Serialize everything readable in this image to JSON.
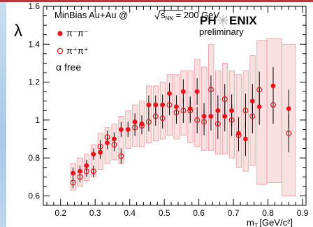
{
  "chart_data": {
    "type": "scatter",
    "ylabel": "λ",
    "xlabel_main": "m",
    "xlabel_sub": "T",
    "xlabel_unit": "[GeV/c²]",
    "xlim": [
      0.15,
      0.91
    ],
    "ylim": [
      0.55,
      1.6
    ],
    "xticks": [
      {
        "v": 0.2,
        "label": "0.2"
      },
      {
        "v": 0.3,
        "label": "0.3"
      },
      {
        "v": 0.4,
        "label": "0.4"
      },
      {
        "v": 0.5,
        "label": "0.5"
      },
      {
        "v": 0.6,
        "label": "0.6"
      },
      {
        "v": 0.7,
        "label": "0.7"
      },
      {
        "v": 0.8,
        "label": "0.8"
      },
      {
        "v": 0.9,
        "label": "0.9"
      }
    ],
    "yticks": [
      {
        "v": 0.6,
        "label": "0.6"
      },
      {
        "v": 0.8,
        "label": "0.8"
      },
      {
        "v": 1.0,
        "label": "1"
      },
      {
        "v": 1.2,
        "label": "1.2"
      },
      {
        "v": 1.4,
        "label": "1.4"
      },
      {
        "v": 1.6,
        "label": "1.6"
      }
    ],
    "annotation": {
      "system_pre": "MinBias Au+Au @ ",
      "sqrt_s": "s",
      "sqrt_sub": "NN",
      "system_post": " = 200 GeV",
      "alpha": "α free"
    },
    "logo": {
      "text_left": "PH",
      "text_right": "ENIX",
      "subtitle": "preliminary"
    },
    "colors": {
      "minus": "#e8141b",
      "plus": "#e8141b",
      "band_fill": "#f6c9c9",
      "band_stroke": "#ef9a9a"
    },
    "series": [
      {
        "name": "π⁻π⁻",
        "marker": "filled",
        "points": [
          {
            "x": 0.236,
            "y": 0.72,
            "err": 0.03
          },
          {
            "x": 0.256,
            "y": 0.73,
            "err": 0.03
          },
          {
            "x": 0.275,
            "y": 0.76,
            "err": 0.03
          },
          {
            "x": 0.295,
            "y": 0.82,
            "err": 0.03
          },
          {
            "x": 0.315,
            "y": 0.83,
            "err": 0.035
          },
          {
            "x": 0.335,
            "y": 0.88,
            "err": 0.035
          },
          {
            "x": 0.355,
            "y": 0.9,
            "err": 0.035
          },
          {
            "x": 0.375,
            "y": 0.95,
            "err": 0.04
          },
          {
            "x": 0.395,
            "y": 0.95,
            "err": 0.04
          },
          {
            "x": 0.415,
            "y": 0.99,
            "err": 0.045
          },
          {
            "x": 0.435,
            "y": 0.98,
            "err": 0.045
          },
          {
            "x": 0.455,
            "y": 1.08,
            "err": 0.05
          },
          {
            "x": 0.475,
            "y": 1.08,
            "err": 0.05
          },
          {
            "x": 0.495,
            "y": 1.08,
            "err": 0.055
          },
          {
            "x": 0.515,
            "y": 1.14,
            "err": 0.055
          },
          {
            "x": 0.535,
            "y": 1.07,
            "err": 0.06
          },
          {
            "x": 0.555,
            "y": 1.15,
            "err": 0.065
          },
          {
            "x": 0.575,
            "y": 1.06,
            "err": 0.065
          },
          {
            "x": 0.595,
            "y": 1.15,
            "err": 0.07
          },
          {
            "x": 0.615,
            "y": 1.02,
            "err": 0.07
          },
          {
            "x": 0.635,
            "y": 1.02,
            "err": 0.075
          },
          {
            "x": 0.655,
            "y": 1.05,
            "err": 0.08
          },
          {
            "x": 0.675,
            "y": 1.02,
            "err": 0.08
          },
          {
            "x": 0.695,
            "y": 1.05,
            "err": 0.085
          },
          {
            "x": 0.715,
            "y": 0.93,
            "err": 0.085
          },
          {
            "x": 0.735,
            "y": 0.9,
            "err": 0.09
          },
          {
            "x": 0.755,
            "y": 1.1,
            "err": 0.09
          },
          {
            "x": 0.775,
            "y": 1.07,
            "err": 0.095
          },
          {
            "x": 0.815,
            "y": 1.18,
            "err": 0.1
          },
          {
            "x": 0.86,
            "y": 1.06,
            "err": 0.1
          }
        ]
      },
      {
        "name": "π⁺π⁺",
        "marker": "open",
        "points": [
          {
            "x": 0.236,
            "y": 0.67,
            "err": 0.03
          },
          {
            "x": 0.256,
            "y": 0.7,
            "err": 0.03
          },
          {
            "x": 0.275,
            "y": 0.73,
            "err": 0.03
          },
          {
            "x": 0.295,
            "y": 0.73,
            "err": 0.03
          },
          {
            "x": 0.315,
            "y": 0.86,
            "err": 0.035
          },
          {
            "x": 0.335,
            "y": 0.91,
            "err": 0.035
          },
          {
            "x": 0.355,
            "y": 0.87,
            "err": 0.035
          },
          {
            "x": 0.375,
            "y": 0.81,
            "err": 0.04
          },
          {
            "x": 0.415,
            "y": 0.96,
            "err": 0.045
          },
          {
            "x": 0.435,
            "y": 0.97,
            "err": 0.045
          },
          {
            "x": 0.455,
            "y": 0.99,
            "err": 0.05
          },
          {
            "x": 0.475,
            "y": 1.02,
            "err": 0.05
          },
          {
            "x": 0.495,
            "y": 1.01,
            "err": 0.055
          },
          {
            "x": 0.515,
            "y": 1.08,
            "err": 0.055
          },
          {
            "x": 0.535,
            "y": 1.04,
            "err": 0.06
          },
          {
            "x": 0.555,
            "y": 1.05,
            "err": 0.065
          },
          {
            "x": 0.575,
            "y": 1.05,
            "err": 0.065
          },
          {
            "x": 0.595,
            "y": 1.0,
            "err": 0.07
          },
          {
            "x": 0.615,
            "y": 0.99,
            "err": 0.07
          },
          {
            "x": 0.635,
            "y": 1.16,
            "err": 0.075
          },
          {
            "x": 0.655,
            "y": 0.98,
            "err": 0.08
          },
          {
            "x": 0.675,
            "y": 1.11,
            "err": 0.08
          },
          {
            "x": 0.695,
            "y": 1.0,
            "err": 0.085
          },
          {
            "x": 0.715,
            "y": 0.92,
            "err": 0.085
          },
          {
            "x": 0.735,
            "y": 1.05,
            "err": 0.09
          },
          {
            "x": 0.755,
            "y": 1.02,
            "err": 0.09
          },
          {
            "x": 0.775,
            "y": 1.16,
            "err": 0.095
          },
          {
            "x": 0.815,
            "y": 1.08,
            "err": 0.1
          },
          {
            "x": 0.86,
            "y": 0.93,
            "err": 0.1
          }
        ]
      }
    ],
    "sys_bands": [
      {
        "x0": 0.229,
        "x1": 0.244,
        "y0": 0.63,
        "y1": 0.77
      },
      {
        "x0": 0.249,
        "x1": 0.264,
        "y0": 0.65,
        "y1": 0.8
      },
      {
        "x0": 0.268,
        "x1": 0.283,
        "y0": 0.68,
        "y1": 0.82
      },
      {
        "x0": 0.288,
        "x1": 0.303,
        "y0": 0.7,
        "y1": 0.87
      },
      {
        "x0": 0.308,
        "x1": 0.323,
        "y0": 0.74,
        "y1": 0.93
      },
      {
        "x0": 0.328,
        "x1": 0.343,
        "y0": 0.77,
        "y1": 0.96
      },
      {
        "x0": 0.348,
        "x1": 0.363,
        "y0": 0.79,
        "y1": 0.98
      },
      {
        "x0": 0.368,
        "x1": 0.383,
        "y0": 0.77,
        "y1": 1.02
      },
      {
        "x0": 0.388,
        "x1": 0.403,
        "y0": 0.85,
        "y1": 1.05
      },
      {
        "x0": 0.408,
        "x1": 0.423,
        "y0": 0.86,
        "y1": 1.08
      },
      {
        "x0": 0.428,
        "x1": 0.443,
        "y0": 0.86,
        "y1": 1.1
      },
      {
        "x0": 0.448,
        "x1": 0.463,
        "y0": 0.88,
        "y1": 1.18
      },
      {
        "x0": 0.468,
        "x1": 0.483,
        "y0": 0.89,
        "y1": 1.18
      },
      {
        "x0": 0.488,
        "x1": 0.503,
        "y0": 0.9,
        "y1": 1.2
      },
      {
        "x0": 0.508,
        "x1": 0.523,
        "y0": 0.92,
        "y1": 1.24
      },
      {
        "x0": 0.528,
        "x1": 0.543,
        "y0": 0.9,
        "y1": 1.24
      },
      {
        "x0": 0.548,
        "x1": 0.563,
        "y0": 0.92,
        "y1": 1.26
      },
      {
        "x0": 0.568,
        "x1": 0.583,
        "y0": 0.88,
        "y1": 1.26
      },
      {
        "x0": 0.588,
        "x1": 0.603,
        "y0": 0.86,
        "y1": 1.32
      },
      {
        "x0": 0.608,
        "x1": 0.623,
        "y0": 0.84,
        "y1": 1.28
      },
      {
        "x0": 0.628,
        "x1": 0.643,
        "y0": 0.84,
        "y1": 1.4
      },
      {
        "x0": 0.648,
        "x1": 0.663,
        "y0": 0.82,
        "y1": 1.26
      },
      {
        "x0": 0.668,
        "x1": 0.683,
        "y0": 0.82,
        "y1": 1.3
      },
      {
        "x0": 0.688,
        "x1": 0.703,
        "y0": 0.8,
        "y1": 1.26
      },
      {
        "x0": 0.708,
        "x1": 0.723,
        "y0": 0.75,
        "y1": 1.24
      },
      {
        "x0": 0.728,
        "x1": 0.743,
        "y0": 0.73,
        "y1": 1.26
      },
      {
        "x0": 0.748,
        "x1": 0.763,
        "y0": 0.76,
        "y1": 1.34
      },
      {
        "x0": 0.768,
        "x1": 0.797,
        "y0": 0.66,
        "y1": 1.42
      },
      {
        "x0": 0.797,
        "x1": 0.84,
        "y0": 0.67,
        "y1": 1.43
      },
      {
        "x0": 0.84,
        "x1": 0.88,
        "y0": 0.6,
        "y1": 1.4
      }
    ]
  }
}
